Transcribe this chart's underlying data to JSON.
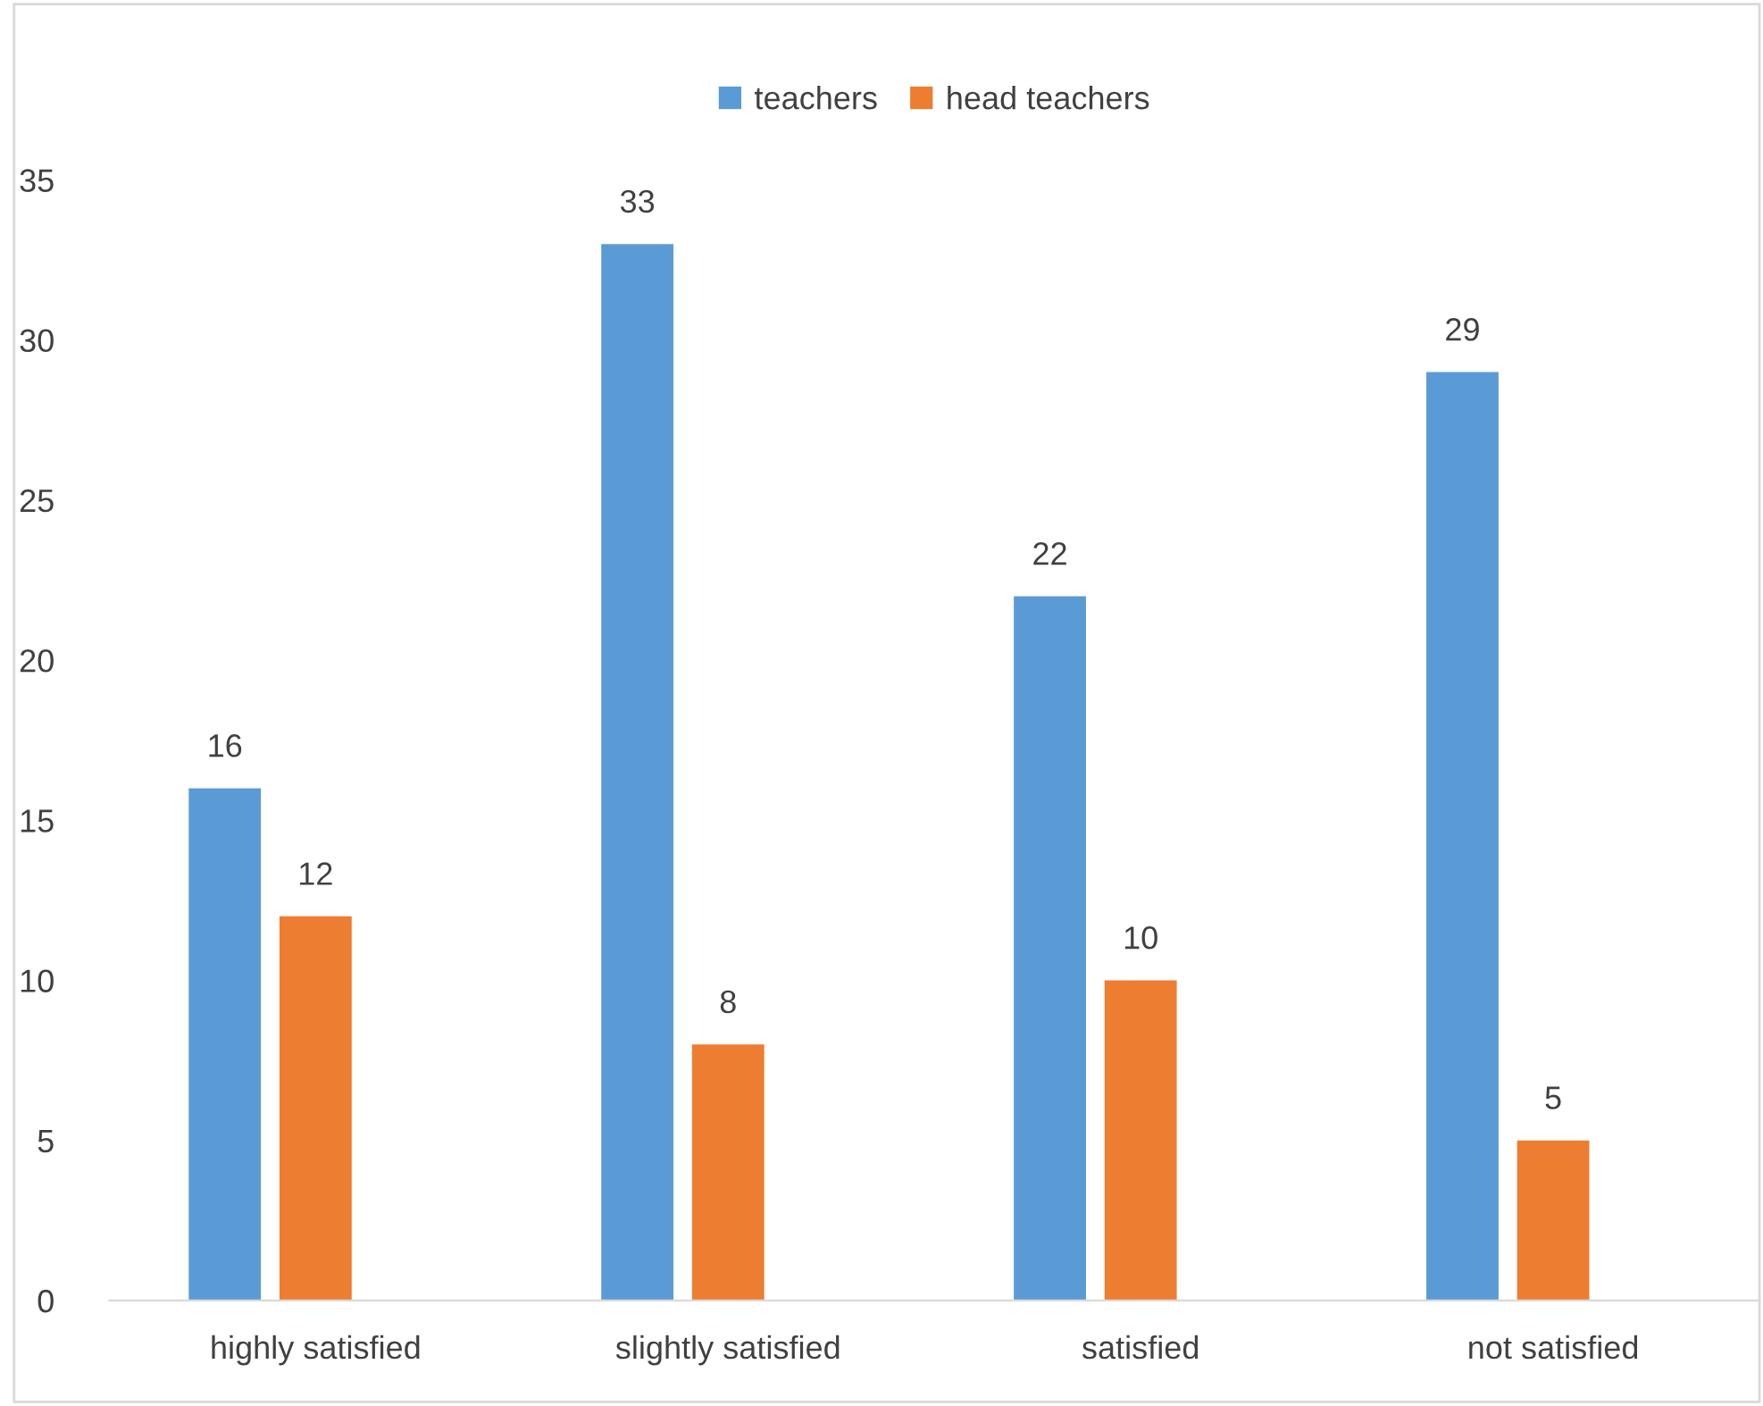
{
  "chart_data": {
    "type": "bar",
    "categories": [
      "highly satisfied",
      "slightly satisfied",
      "satisfied",
      "not satisfied"
    ],
    "series": [
      {
        "name": "teachers",
        "color": "#5b9bd5",
        "values": [
          16,
          33,
          22,
          29
        ]
      },
      {
        "name": "head teachers",
        "color": "#ed7d31",
        "values": [
          12,
          8,
          10,
          5
        ]
      }
    ],
    "ylim": [
      0,
      35
    ],
    "yticks": [
      0,
      5,
      10,
      15,
      20,
      25,
      30,
      35
    ],
    "data_labels": true,
    "grid": false,
    "legend": "top"
  }
}
